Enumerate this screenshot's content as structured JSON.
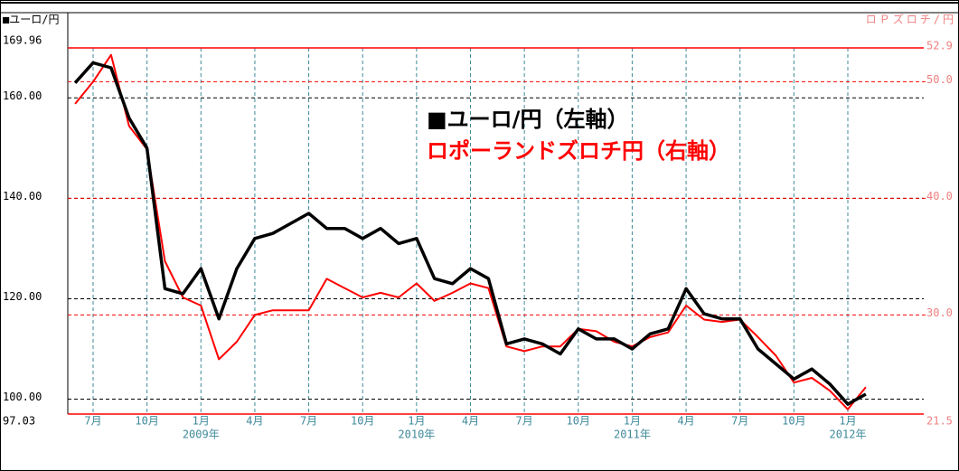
{
  "chart_data": {
    "type": "line",
    "left_axis_title": "■ユーロ/円",
    "right_axis_title": "ロＰズロチ/円",
    "annotations": [
      "■ユーロ/円（左軸）",
      "ロポーランドズロチ円（右軸）"
    ],
    "x": [
      "2008-06",
      "2008-07",
      "2008-08",
      "2008-09",
      "2008-10",
      "2008-11",
      "2008-12",
      "2009-01",
      "2009-02",
      "2009-03",
      "2009-04",
      "2009-05",
      "2009-06",
      "2009-07",
      "2009-08",
      "2009-09",
      "2009-10",
      "2009-11",
      "2009-12",
      "2010-01",
      "2010-02",
      "2010-03",
      "2010-04",
      "2010-05",
      "2010-06",
      "2010-07",
      "2010-08",
      "2010-09",
      "2010-10",
      "2010-11",
      "2010-12",
      "2011-01",
      "2011-02",
      "2011-03",
      "2011-04",
      "2011-05",
      "2011-06",
      "2011-07",
      "2011-08",
      "2011-09",
      "2011-10",
      "2011-11",
      "2011-12",
      "2012-01",
      "2012-02"
    ],
    "series": [
      {
        "name": "ユーロ/円",
        "color": "#000000",
        "axis": "y",
        "values": [
          163,
          167,
          166,
          156,
          150,
          122,
          121,
          126,
          116,
          126,
          132,
          133,
          135,
          137,
          134,
          134,
          132,
          134,
          131,
          132,
          124,
          123,
          126,
          124,
          111,
          112,
          111,
          109,
          114,
          112,
          112,
          110,
          113,
          114,
          122,
          117,
          116,
          116,
          110,
          107,
          104,
          106,
          103,
          99,
          101
        ]
      },
      {
        "name": "ポーランドズロチ円",
        "color": "#ff0000",
        "axis": "y2",
        "values": [
          48.1,
          50.0,
          52.3,
          46.2,
          44.2,
          34.6,
          31.5,
          30.8,
          26.2,
          27.7,
          30.0,
          30.4,
          30.4,
          30.4,
          33.1,
          32.3,
          31.5,
          31.9,
          31.5,
          32.7,
          31.2,
          31.9,
          32.7,
          32.3,
          27.3,
          26.9,
          27.3,
          27.3,
          28.8,
          28.6,
          27.7,
          27.3,
          28.1,
          28.5,
          30.8,
          29.6,
          29.4,
          29.6,
          28.1,
          26.5,
          24.2,
          24.6,
          23.5,
          21.9,
          23.8
        ]
      }
    ],
    "ylim": [
      97.03,
      169.96
    ],
    "yticks": [
      {
        "value": 169.96,
        "label": "169.96"
      },
      {
        "value": 160,
        "label": "160.00"
      },
      {
        "value": 140,
        "label": "140.00"
      },
      {
        "value": 120,
        "label": "120.00"
      },
      {
        "value": 100,
        "label": "100.00"
      },
      {
        "value": 97.03,
        "label": "97.03"
      }
    ],
    "y2lim": [
      21.5,
      52.9
    ],
    "y2ticks": [
      52.9,
      {
        "value": 50,
        "label": "50.0"
      },
      {
        "value": 40,
        "label": "40.0"
      },
      {
        "value": 30,
        "label": "30.0"
      },
      21.5
    ],
    "xticks": [
      {
        "value": "2008-07",
        "label": "7月"
      },
      {
        "value": "2008-10",
        "label": "10月"
      },
      {
        "value": "2009-01",
        "label": "1月"
      },
      {
        "value": "2009-04",
        "label": "4月"
      },
      {
        "value": "2009-07",
        "label": "7月"
      },
      {
        "value": "2009-10",
        "label": "10月"
      },
      {
        "value": "2010-01",
        "label": "1月"
      },
      {
        "value": "2010-04",
        "label": "4月"
      },
      {
        "value": "2010-07",
        "label": "7月"
      },
      {
        "value": "2010-10",
        "label": "10月"
      },
      {
        "value": "2011-01",
        "label": "1月"
      },
      {
        "value": "2011-04",
        "label": "4月"
      },
      {
        "value": "2011-07",
        "label": "7月"
      },
      {
        "value": "2011-10",
        "label": "10月"
      },
      {
        "value": "2012-01",
        "label": "1月"
      }
    ],
    "year_labels": [
      {
        "value": "2009-01",
        "label": "2009年"
      },
      {
        "value": "2010-01",
        "label": "2010年"
      },
      {
        "value": "2011-01",
        "label": "2011年"
      },
      {
        "value": "2012-01",
        "label": "2012年"
      }
    ],
    "grid": true
  }
}
